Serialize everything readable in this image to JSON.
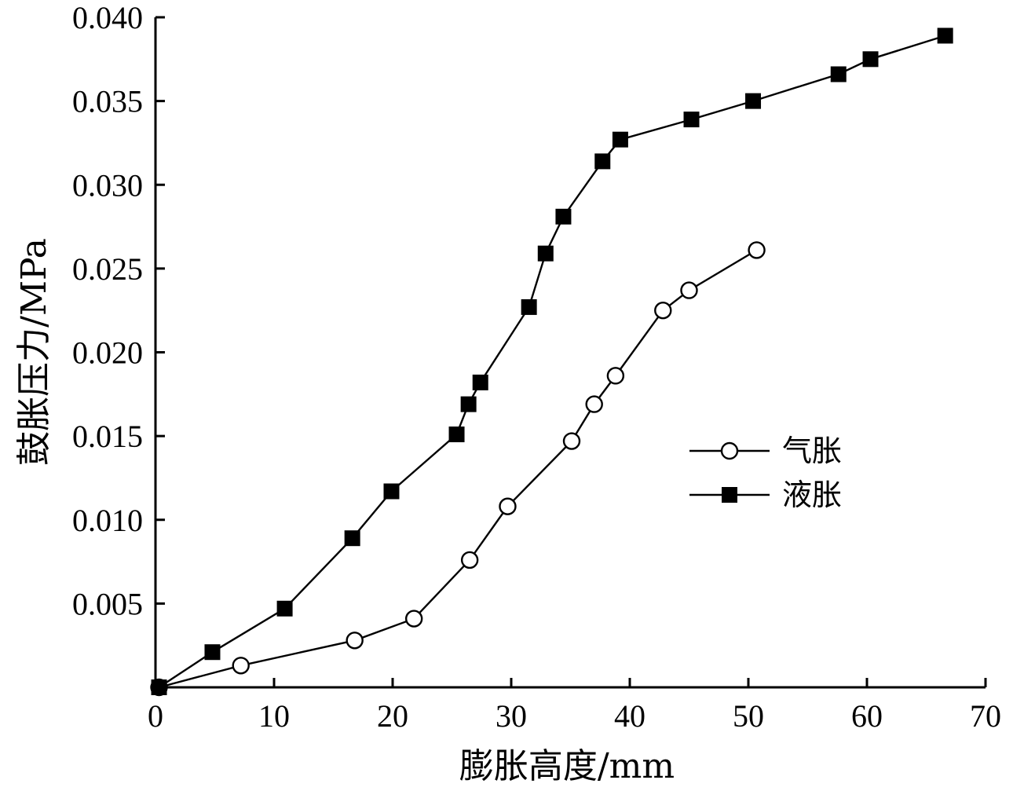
{
  "chart_data": {
    "type": "line",
    "xlabel": "膨胀高度/mm",
    "ylabel": "鼓胀压力/MPa",
    "xlim": [
      0,
      70
    ],
    "ylim": [
      0,
      0.04
    ],
    "xticks": [
      "0",
      "10",
      "20",
      "30",
      "40",
      "50",
      "60",
      "70"
    ],
    "yticks": [
      "0.005",
      "0.010",
      "0.015",
      "0.020",
      "0.025",
      "0.030",
      "0.035",
      "0.040"
    ],
    "grid": false,
    "legend_position": "center-right",
    "series": [
      {
        "name": "气胀",
        "marker": "open-circle",
        "points": [
          [
            0.3,
            0.0
          ],
          [
            7.2,
            0.0013
          ],
          [
            16.8,
            0.0028
          ],
          [
            21.8,
            0.0041
          ],
          [
            26.5,
            0.0076
          ],
          [
            29.7,
            0.0108
          ],
          [
            35.1,
            0.0147
          ],
          [
            37.0,
            0.0169
          ],
          [
            38.8,
            0.0186
          ],
          [
            42.8,
            0.0225
          ],
          [
            45.0,
            0.0237
          ],
          [
            50.7,
            0.0261
          ]
        ]
      },
      {
        "name": "液胀",
        "marker": "filled-square",
        "points": [
          [
            0.3,
            0.0
          ],
          [
            4.8,
            0.0021
          ],
          [
            10.9,
            0.0047
          ],
          [
            16.6,
            0.0089
          ],
          [
            19.9,
            0.0117
          ],
          [
            25.4,
            0.0151
          ],
          [
            26.4,
            0.0169
          ],
          [
            27.4,
            0.0182
          ],
          [
            31.5,
            0.0227
          ],
          [
            32.9,
            0.0259
          ],
          [
            34.4,
            0.0281
          ],
          [
            37.7,
            0.0314
          ],
          [
            39.2,
            0.0327
          ],
          [
            45.2,
            0.0339
          ],
          [
            50.4,
            0.035
          ],
          [
            57.6,
            0.0366
          ],
          [
            60.3,
            0.0375
          ],
          [
            66.6,
            0.0389
          ]
        ]
      }
    ]
  }
}
